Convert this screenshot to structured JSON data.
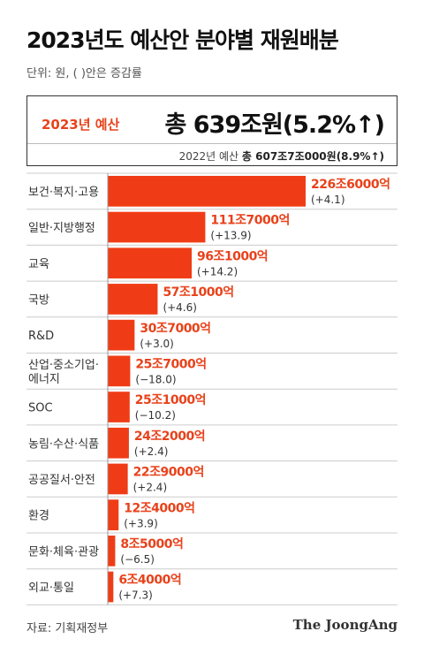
{
  "header": {
    "title": "2023년도 예산안 분야별 재원배분",
    "unit": "단위: 원, ( )안은 증감률"
  },
  "summary": {
    "label": "2023년 예산",
    "total": "총 639조원(5.2%↑)",
    "prev_label": "2022년 예산",
    "prev_value": "총 607조7조000원(8.9%↑)"
  },
  "colors": {
    "bar": "#f03c16",
    "label": "#e8421b"
  },
  "chart_data": {
    "type": "bar",
    "orientation": "horizontal",
    "categories": [
      "보건·복지·고용",
      "일반·지방행정",
      "교육",
      "국방",
      "R&D",
      "산업·중소기업·에너지",
      "SOC",
      "농림·수산·식품",
      "공공질서·안전",
      "환경",
      "문화·체육·관광",
      "외교·통일"
    ],
    "category_lines": [
      [
        "보건·복지·고용"
      ],
      [
        "일반·지방행정"
      ],
      [
        "교육"
      ],
      [
        "국방"
      ],
      [
        "R&D"
      ],
      [
        "산업·중소기업·",
        "에너지"
      ],
      [
        "SOC"
      ],
      [
        "농림·수산·식품"
      ],
      [
        "공공질서·안전"
      ],
      [
        "환경"
      ],
      [
        "문화·체육·관광"
      ],
      [
        "외교·통일"
      ]
    ],
    "values": [
      226.6,
      111.7,
      96.1,
      57.1,
      30.7,
      25.7,
      25.1,
      24.2,
      22.9,
      12.4,
      8.5,
      6.4
    ],
    "value_labels": [
      "226조6000억",
      "111조7000억",
      "96조1000억",
      "57조1000억",
      "30조7000억",
      "25조7000억",
      "25조1000억",
      "24조2000억",
      "22조9000억",
      "12조4000억",
      "8조5000억",
      "6조4000억"
    ],
    "change_labels": [
      "(+4.1)",
      "(+13.9)",
      "(+14.2)",
      "(+4.6)",
      "(+3.0)",
      "(−18.0)",
      "(−10.2)",
      "(+2.4)",
      "(+2.4)",
      "(+3.9)",
      "(−6.5)",
      "(+7.3)"
    ],
    "change_values": [
      4.1,
      13.9,
      14.2,
      4.6,
      3.0,
      -18.0,
      -10.2,
      2.4,
      2.4,
      3.9,
      -6.5,
      7.3
    ]
  },
  "footer": {
    "source": "자료: 기획재정부",
    "brand": "The JoongAng"
  }
}
